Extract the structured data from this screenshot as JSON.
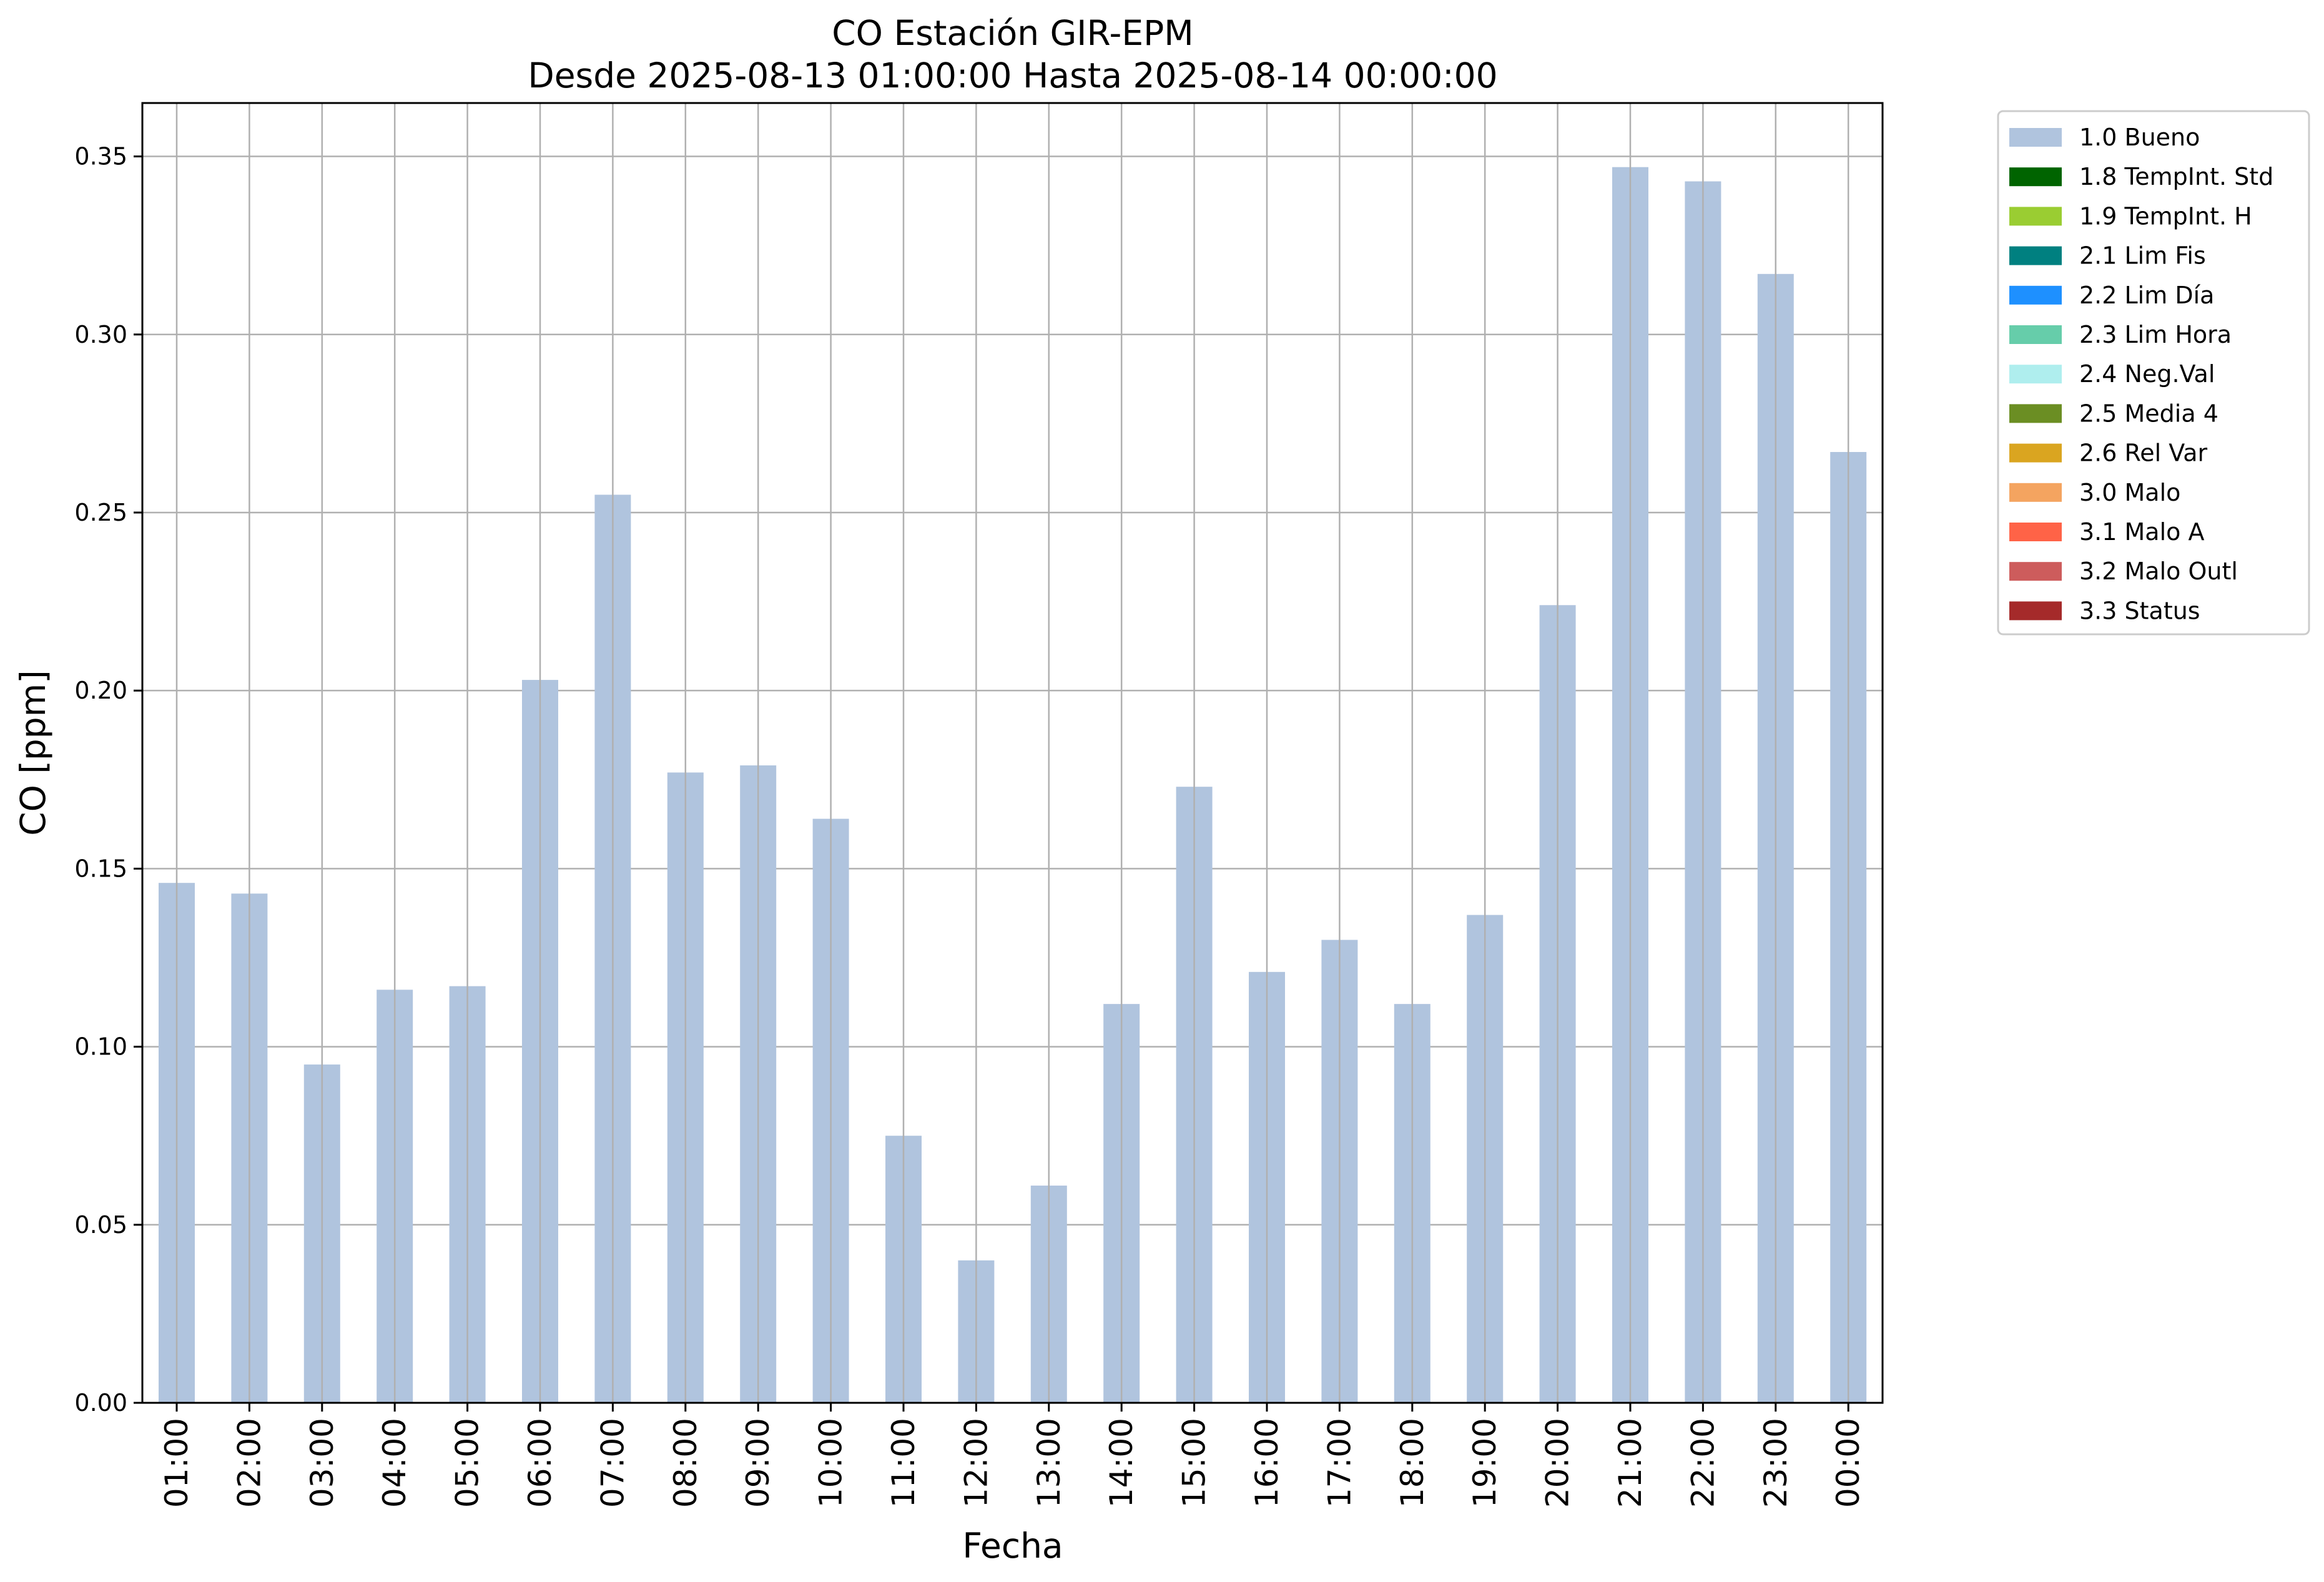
{
  "chart_data": {
    "type": "bar",
    "title": "CO Estación GIR-EPM",
    "subtitle": "Desde 2025-08-13 01:00:00 Hasta 2025-08-14 00:00:00",
    "xlabel": "Fecha",
    "ylabel": "CO [ppm]",
    "ylim": [
      0,
      0.365
    ],
    "yticks": [
      "0.00",
      "0.05",
      "0.10",
      "0.15",
      "0.20",
      "0.25",
      "0.30",
      "0.35"
    ],
    "grid": true,
    "legend_position": "outside-top-right",
    "categories": [
      "01:00",
      "02:00",
      "03:00",
      "04:00",
      "05:00",
      "06:00",
      "07:00",
      "08:00",
      "09:00",
      "10:00",
      "11:00",
      "12:00",
      "13:00",
      "14:00",
      "15:00",
      "16:00",
      "17:00",
      "18:00",
      "19:00",
      "20:00",
      "21:00",
      "22:00",
      "23:00",
      "00:00"
    ],
    "series": [
      {
        "name": "1.0 Bueno",
        "color": "#b0c4de",
        "values": [
          0.146,
          0.143,
          0.095,
          0.116,
          0.117,
          0.203,
          0.255,
          0.177,
          0.179,
          0.164,
          0.075,
          0.04,
          0.061,
          0.112,
          0.173,
          0.121,
          0.13,
          0.112,
          0.137,
          0.224,
          0.347,
          0.343,
          0.317,
          0.267
        ]
      }
    ],
    "legend": [
      {
        "label": "1.0 Bueno",
        "color": "#b0c4de"
      },
      {
        "label": "1.8 TempInt. Std",
        "color": "#006400"
      },
      {
        "label": "1.9 TempInt. H",
        "color": "#9acd32"
      },
      {
        "label": "2.1 Lim Fis",
        "color": "#008080"
      },
      {
        "label": "2.2 Lim Día",
        "color": "#1e90ff"
      },
      {
        "label": "2.3 Lim Hora",
        "color": "#66cdaa"
      },
      {
        "label": "2.4 Neg.Val",
        "color": "#afeeee"
      },
      {
        "label": "2.5 Media 4",
        "color": "#6b8e23"
      },
      {
        "label": "2.6 Rel Var",
        "color": "#daa520"
      },
      {
        "label": "3.0 Malo",
        "color": "#f4a460"
      },
      {
        "label": "3.1 Malo A",
        "color": "#ff6347"
      },
      {
        "label": "3.2 Malo Outl",
        "color": "#cd5c5c"
      },
      {
        "label": "3.3 Status",
        "color": "#a52a2a"
      }
    ]
  }
}
